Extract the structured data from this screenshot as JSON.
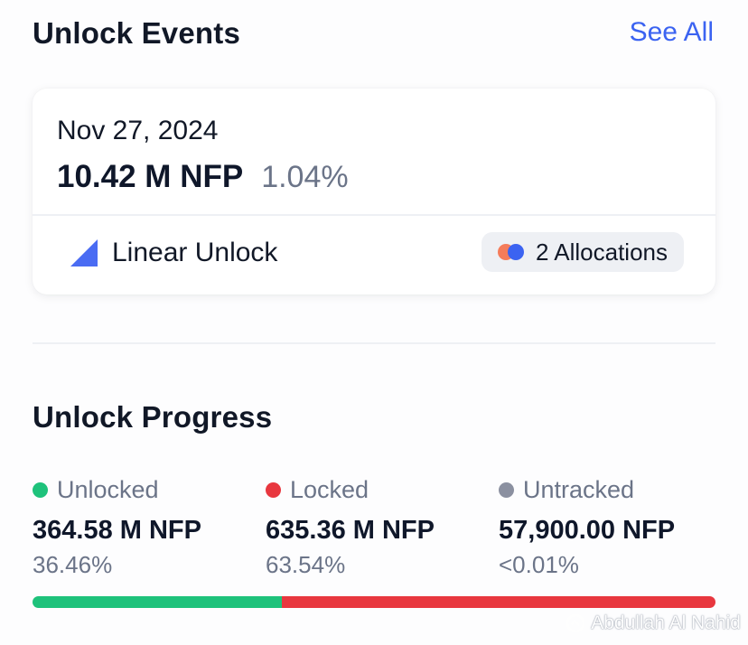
{
  "events": {
    "title": "Unlock Events",
    "see_all": "See All"
  },
  "card": {
    "date": "Nov 27, 2024",
    "amount": "10.42 M NFP",
    "percent": "1.04%",
    "unlock_type": "Linear Unlock",
    "unlock_type_icon": "linear-unlock-icon",
    "allocations": "2 Allocations",
    "allocation_colors": [
      "#f57c5a",
      "#3b63f1"
    ]
  },
  "progress": {
    "title": "Unlock Progress",
    "unlocked": {
      "label": "Unlocked",
      "value": "364.58 M NFP",
      "percent": "36.46%",
      "share": 36.46,
      "color": "#1ec27b"
    },
    "locked": {
      "label": "Locked",
      "value": "635.36 M NFP",
      "percent": "63.54%",
      "share": 63.54,
      "color": "#e8373f"
    },
    "untracked": {
      "label": "Untracked",
      "value": "57,900.00 NFP",
      "percent": "<0.01%",
      "color": "#8b90a0"
    }
  },
  "watermark": {
    "text": "Abdullah Al Nahid",
    "icon": "watermark-logo-icon"
  }
}
